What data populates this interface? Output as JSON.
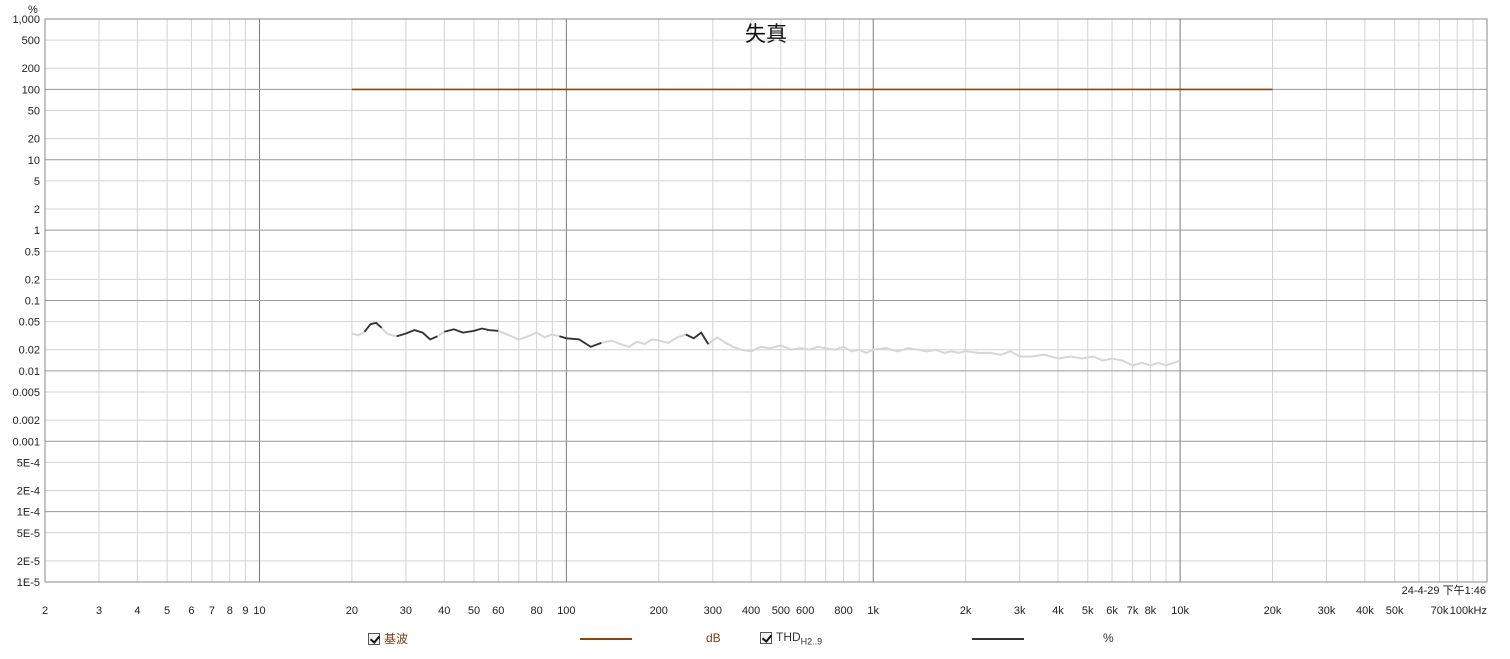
{
  "chart_data": {
    "type": "line",
    "title": "失真",
    "ylabel": "%",
    "xlabel": "",
    "x_scale": "log",
    "y_scale": "log",
    "xlim": [
      2,
      100000
    ],
    "ylim": [
      1e-05,
      1000
    ],
    "x_ticks": [
      {
        "v": 2,
        "t": "2"
      },
      {
        "v": 3,
        "t": "3"
      },
      {
        "v": 4,
        "t": "4"
      },
      {
        "v": 5,
        "t": "5"
      },
      {
        "v": 6,
        "t": "6"
      },
      {
        "v": 7,
        "t": "7"
      },
      {
        "v": 8,
        "t": "8"
      },
      {
        "v": 9,
        "t": "9"
      },
      {
        "v": 10,
        "t": "10"
      },
      {
        "v": 20,
        "t": "20"
      },
      {
        "v": 30,
        "t": "30"
      },
      {
        "v": 40,
        "t": "40"
      },
      {
        "v": 50,
        "t": "50"
      },
      {
        "v": 60,
        "t": "60"
      },
      {
        "v": 80,
        "t": "80"
      },
      {
        "v": 100,
        "t": "100"
      },
      {
        "v": 200,
        "t": "200"
      },
      {
        "v": 300,
        "t": "300"
      },
      {
        "v": 400,
        "t": "400"
      },
      {
        "v": 500,
        "t": "500"
      },
      {
        "v": 600,
        "t": "600"
      },
      {
        "v": 800,
        "t": "800"
      },
      {
        "v": 1000,
        "t": "1k"
      },
      {
        "v": 2000,
        "t": "2k"
      },
      {
        "v": 3000,
        "t": "3k"
      },
      {
        "v": 4000,
        "t": "4k"
      },
      {
        "v": 5000,
        "t": "5k"
      },
      {
        "v": 6000,
        "t": "6k"
      },
      {
        "v": 7000,
        "t": "7k"
      },
      {
        "v": 8000,
        "t": "8k"
      },
      {
        "v": 10000,
        "t": "10k"
      },
      {
        "v": 20000,
        "t": "20k"
      },
      {
        "v": 30000,
        "t": "30k"
      },
      {
        "v": 40000,
        "t": "40k"
      },
      {
        "v": 50000,
        "t": "50k"
      },
      {
        "v": 70000,
        "t": "70k"
      },
      {
        "v": 100000,
        "t": "100kHz"
      }
    ],
    "y_ticks": [
      {
        "v": 1000,
        "t": "1,000"
      },
      {
        "v": 500,
        "t": "500"
      },
      {
        "v": 200,
        "t": "200"
      },
      {
        "v": 100,
        "t": "100"
      },
      {
        "v": 50,
        "t": "50"
      },
      {
        "v": 20,
        "t": "20"
      },
      {
        "v": 10,
        "t": "10"
      },
      {
        "v": 5,
        "t": "5"
      },
      {
        "v": 2,
        "t": "2"
      },
      {
        "v": 1,
        "t": "1"
      },
      {
        "v": 0.5,
        "t": "0.5"
      },
      {
        "v": 0.2,
        "t": "0.2"
      },
      {
        "v": 0.1,
        "t": "0.1"
      },
      {
        "v": 0.05,
        "t": "0.05"
      },
      {
        "v": 0.02,
        "t": "0.02"
      },
      {
        "v": 0.01,
        "t": "0.01"
      },
      {
        "v": 0.005,
        "t": "0.005"
      },
      {
        "v": 0.002,
        "t": "0.002"
      },
      {
        "v": 0.001,
        "t": "0.001"
      },
      {
        "v": 0.0005,
        "t": "5E-4"
      },
      {
        "v": 0.0002,
        "t": "2E-4"
      },
      {
        "v": 0.0001,
        "t": "1E-4"
      },
      {
        "v": 5e-05,
        "t": "5E-5"
      },
      {
        "v": 2e-05,
        "t": "2E-5"
      },
      {
        "v": 1e-05,
        "t": "1E-5"
      }
    ],
    "grid": true,
    "series": [
      {
        "name": "基波",
        "color": "#8b4513",
        "x": [
          20,
          20000
        ],
        "y": [
          100,
          100
        ]
      },
      {
        "name": "THD",
        "color": "#333333",
        "x": [
          20,
          21,
          22,
          23,
          24,
          25,
          26,
          27,
          28,
          30,
          32,
          34,
          36,
          38,
          40,
          43,
          46,
          50,
          53,
          56,
          60,
          65,
          70,
          75,
          80,
          85,
          90,
          95,
          100,
          110,
          120,
          130,
          140,
          150,
          160,
          170,
          180,
          190,
          200,
          215,
          230,
          245,
          260,
          275,
          290,
          310,
          330,
          350,
          370,
          400,
          430,
          460,
          500,
          540,
          580,
          620,
          660,
          700,
          750,
          800,
          850,
          900,
          950,
          1000,
          1100,
          1200,
          1300,
          1400,
          1500,
          1600,
          1700,
          1800,
          1900,
          2000,
          2200,
          2400,
          2600,
          2800,
          3000,
          3300,
          3600,
          4000,
          4400,
          4800,
          5200,
          5600,
          6000,
          6500,
          7000,
          7500,
          8000,
          8500,
          9000,
          9500,
          10000
        ],
        "y": [
          0.034,
          0.032,
          0.036,
          0.046,
          0.048,
          0.041,
          0.034,
          0.032,
          0.031,
          0.034,
          0.038,
          0.035,
          0.028,
          0.031,
          0.036,
          0.039,
          0.035,
          0.037,
          0.04,
          0.038,
          0.037,
          0.032,
          0.028,
          0.031,
          0.035,
          0.03,
          0.033,
          0.031,
          0.029,
          0.028,
          0.022,
          0.025,
          0.027,
          0.024,
          0.022,
          0.026,
          0.024,
          0.028,
          0.027,
          0.025,
          0.03,
          0.033,
          0.029,
          0.035,
          0.024,
          0.03,
          0.025,
          0.022,
          0.02,
          0.019,
          0.022,
          0.021,
          0.023,
          0.02,
          0.021,
          0.02,
          0.022,
          0.021,
          0.02,
          0.022,
          0.019,
          0.02,
          0.018,
          0.02,
          0.021,
          0.019,
          0.021,
          0.02,
          0.019,
          0.02,
          0.018,
          0.019,
          0.018,
          0.019,
          0.018,
          0.018,
          0.017,
          0.019,
          0.016,
          0.016,
          0.017,
          0.015,
          0.016,
          0.015,
          0.016,
          0.014,
          0.015,
          0.014,
          0.012,
          0.013,
          0.012,
          0.013,
          0.012,
          0.013,
          0.014
        ]
      }
    ],
    "timestamp": "24-4-29 下午1:46",
    "legend": [
      {
        "label": "基波",
        "unit": "dB",
        "checked": true
      },
      {
        "label": "THD",
        "label_sub": "H2..9",
        "unit": "%",
        "checked": true
      }
    ]
  }
}
